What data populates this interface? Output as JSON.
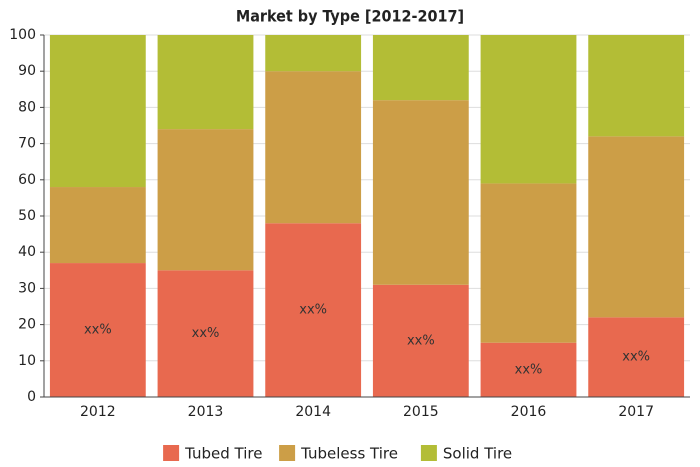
{
  "chart_data": {
    "type": "stacked_bar",
    "title": "Market by Type [2012-2017]",
    "categories": [
      "2012",
      "2013",
      "2014",
      "2015",
      "2016",
      "2017"
    ],
    "series": [
      {
        "name": "Tubed Tire",
        "color": "#e8694f",
        "values": [
          37,
          35,
          48,
          31,
          15,
          22
        ],
        "value_labels": [
          "xx%",
          "xx%",
          "xx%",
          "xx%",
          "xx%",
          "xx%"
        ]
      },
      {
        "name": "Tubeless Tire",
        "color": "#cc9e47",
        "values": [
          21,
          39,
          42,
          51,
          44,
          50
        ]
      },
      {
        "name": "Solid Tire",
        "color": "#b3bd36",
        "values": [
          42,
          26,
          10,
          18,
          41,
          28
        ]
      }
    ],
    "ylim": [
      0,
      100
    ],
    "yticks": [
      0,
      10,
      20,
      30,
      40,
      50,
      60,
      70,
      80,
      90,
      100
    ],
    "grid": true,
    "legend": "bottom"
  }
}
